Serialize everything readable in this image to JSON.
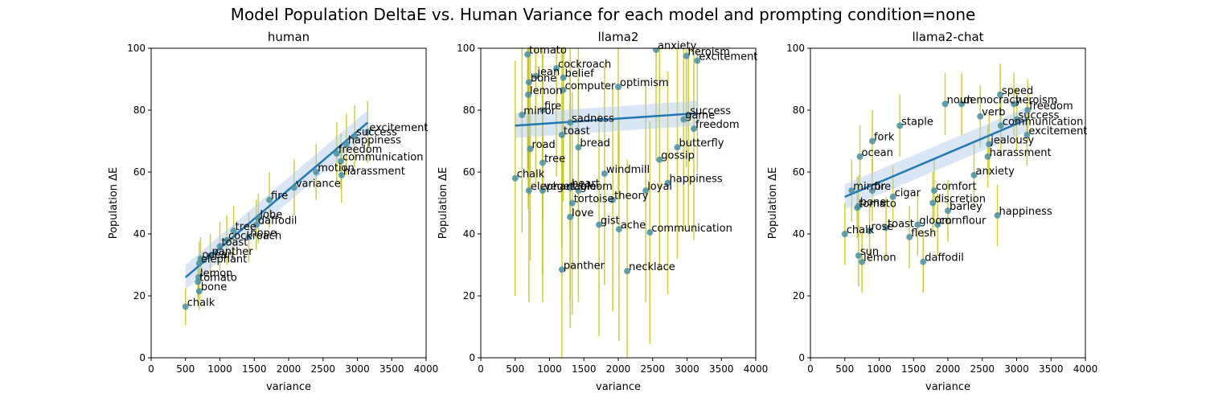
{
  "figure": {
    "title": "Model Population DeltaE vs. Human Variance for each model and prompting condition=none"
  },
  "colors": {
    "point": "#4a8fa0",
    "errorbar": "#bfbf00",
    "regression": "#1f77b4",
    "band": "#aec7e8"
  },
  "chart_data": [
    {
      "type": "scatter",
      "title": "human",
      "xlabel": "variance",
      "ylabel": "Population ΔE",
      "xlim": [
        0,
        4000
      ],
      "ylim": [
        0,
        100
      ],
      "xticks": [
        "0",
        "500",
        "1000",
        "1500",
        "2000",
        "2500",
        "3000",
        "3500",
        "4000"
      ],
      "yticks": [
        "0",
        "20",
        "40",
        "60",
        "80",
        "100"
      ],
      "regression": {
        "x": [
          500,
          3150
        ],
        "y": [
          26,
          76
        ]
      },
      "points": [
        {
          "label": "chalk",
          "x": 500,
          "y": 16.5,
          "err": 6
        },
        {
          "label": "bone",
          "x": 700,
          "y": 21.5,
          "err": 6
        },
        {
          "label": "tomato",
          "x": 680,
          "y": 24.5,
          "err": 6
        },
        {
          "label": "lemon",
          "x": 690,
          "y": 26,
          "err": 6
        },
        {
          "label": "elephant",
          "x": 700,
          "y": 30.5,
          "err": 7
        },
        {
          "label": "panther",
          "x": 860,
          "y": 33,
          "err": 7
        },
        {
          "label": "ocean",
          "x": 720,
          "y": 32,
          "err": 7
        },
        {
          "label": "toast",
          "x": 1000,
          "y": 36,
          "err": 8
        },
        {
          "label": "cockroach",
          "x": 1100,
          "y": 38,
          "err": 8
        },
        {
          "label": "tree",
          "x": 1200,
          "y": 41,
          "err": 8
        },
        {
          "label": "hope",
          "x": 1420,
          "y": 39,
          "err": 8
        },
        {
          "label": "daffodil",
          "x": 1530,
          "y": 43,
          "err": 8
        },
        {
          "label": "lobe",
          "x": 1560,
          "y": 45,
          "err": 8
        },
        {
          "label": "fire",
          "x": 1720,
          "y": 51,
          "err": 9
        },
        {
          "label": "variance",
          "x": 2080,
          "y": 55,
          "err": 9
        },
        {
          "label": "motion",
          "x": 2400,
          "y": 60,
          "err": 9
        },
        {
          "label": "harassment",
          "x": 2770,
          "y": 59,
          "err": 9
        },
        {
          "label": "communication",
          "x": 2760,
          "y": 63.5,
          "err": 9
        },
        {
          "label": "freedom",
          "x": 2700,
          "y": 66,
          "err": 10
        },
        {
          "label": "happiness",
          "x": 2840,
          "y": 69,
          "err": 10
        },
        {
          "label": "success",
          "x": 2960,
          "y": 71.5,
          "err": 10
        },
        {
          "label": "excitement",
          "x": 3150,
          "y": 73,
          "err": 10
        }
      ]
    },
    {
      "type": "scatter",
      "title": "llama2",
      "xlabel": "variance",
      "ylabel": "Population ΔE",
      "xlim": [
        0,
        4000
      ],
      "ylim": [
        0,
        100
      ],
      "xticks": [
        "0",
        "500",
        "1000",
        "1500",
        "2000",
        "2500",
        "3000",
        "3500",
        "4000"
      ],
      "yticks": [
        "0",
        "20",
        "40",
        "60",
        "80",
        "100"
      ],
      "regression": {
        "x": [
          500,
          3150
        ],
        "y": [
          75,
          79
        ]
      },
      "points": [
        {
          "label": "tomato",
          "x": 680,
          "y": 98,
          "err": 38
        },
        {
          "label": "cockroach",
          "x": 1100,
          "y": 93.5,
          "err": 35
        },
        {
          "label": "jean",
          "x": 800,
          "y": 91,
          "err": 36
        },
        {
          "label": "bone",
          "x": 700,
          "y": 89,
          "err": 37
        },
        {
          "label": "lemon",
          "x": 690,
          "y": 85,
          "err": 37
        },
        {
          "label": "mirror",
          "x": 600,
          "y": 78.5,
          "err": 38
        },
        {
          "label": "sadness",
          "x": 1300,
          "y": 76,
          "err": 36
        },
        {
          "label": "road",
          "x": 720,
          "y": 67.5,
          "err": 36
        },
        {
          "label": "tree",
          "x": 900,
          "y": 63,
          "err": 36
        },
        {
          "label": "chalk",
          "x": 500,
          "y": 58,
          "err": 38
        },
        {
          "label": "elephant",
          "x": 700,
          "y": 54,
          "err": 36
        },
        {
          "label": "vegetable",
          "x": 900,
          "y": 54,
          "err": 36
        },
        {
          "label": "tortoise",
          "x": 1330,
          "y": 50,
          "err": 36
        },
        {
          "label": "love",
          "x": 1300,
          "y": 45.5,
          "err": 36
        },
        {
          "label": "gist",
          "x": 1720,
          "y": 43,
          "err": 36
        },
        {
          "label": "ache",
          "x": 2010,
          "y": 41.5,
          "err": 36
        },
        {
          "label": "communication",
          "x": 2460,
          "y": 40.5,
          "err": 36
        },
        {
          "label": "panther",
          "x": 1180,
          "y": 28.5,
          "err": 36
        },
        {
          "label": "necklace",
          "x": 2130,
          "y": 28,
          "err": 36
        },
        {
          "label": "theory",
          "x": 1920,
          "y": 51,
          "err": 36
        },
        {
          "label": "loyal",
          "x": 2400,
          "y": 54,
          "err": 36
        },
        {
          "label": "happiness",
          "x": 2720,
          "y": 56.5,
          "err": 36
        },
        {
          "label": "gossip",
          "x": 2600,
          "y": 64,
          "err": 36
        },
        {
          "label": "butterfly",
          "x": 2860,
          "y": 68,
          "err": 36
        },
        {
          "label": "freedom",
          "x": 3100,
          "y": 74,
          "err": 36
        },
        {
          "label": "game",
          "x": 2950,
          "y": 77,
          "err": 36
        },
        {
          "label": "success",
          "x": 3020,
          "y": 78.5,
          "err": 36
        },
        {
          "label": "excitement",
          "x": 3150,
          "y": 96,
          "err": 36
        },
        {
          "label": "heroism",
          "x": 2990,
          "y": 97.5,
          "err": 36
        },
        {
          "label": "anxiety",
          "x": 2550,
          "y": 99.5,
          "err": 36
        },
        {
          "label": "windmill",
          "x": 1800,
          "y": 59.5,
          "err": 36
        },
        {
          "label": "bread",
          "x": 1420,
          "y": 68,
          "err": 36
        },
        {
          "label": "heart",
          "x": 1300,
          "y": 55,
          "err": 36
        },
        {
          "label": "toast",
          "x": 1180,
          "y": 72,
          "err": 36
        },
        {
          "label": "optimism",
          "x": 2000,
          "y": 87.5,
          "err": 36
        },
        {
          "label": "fire",
          "x": 900,
          "y": 80,
          "err": 36
        },
        {
          "label": "belief",
          "x": 1200,
          "y": 90.5,
          "err": 36
        },
        {
          "label": "computer",
          "x": 1200,
          "y": 86.5,
          "err": 36
        },
        {
          "label": "gloom",
          "x": 1420,
          "y": 54,
          "err": 36
        }
      ]
    },
    {
      "type": "scatter",
      "title": "llama2-chat",
      "xlabel": "variance",
      "ylabel": "Population ΔE",
      "xlim": [
        0,
        4000
      ],
      "ylim": [
        0,
        100
      ],
      "xticks": [
        "0",
        "500",
        "1000",
        "1500",
        "2000",
        "2500",
        "3000",
        "3500",
        "4000"
      ],
      "yticks": [
        "0",
        "20",
        "40",
        "60",
        "80",
        "100"
      ],
      "regression": {
        "x": [
          500,
          3150
        ],
        "y": [
          52,
          77
        ]
      },
      "points": [
        {
          "label": "speed",
          "x": 2760,
          "y": 85,
          "err": 10
        },
        {
          "label": "noun",
          "x": 1960,
          "y": 82,
          "err": 10
        },
        {
          "label": "democracy",
          "x": 2200,
          "y": 82,
          "err": 10
        },
        {
          "label": "heroism",
          "x": 2960,
          "y": 82,
          "err": 10
        },
        {
          "label": "freedom",
          "x": 3160,
          "y": 80,
          "err": 10
        },
        {
          "label": "verb",
          "x": 2470,
          "y": 78,
          "err": 10
        },
        {
          "label": "success",
          "x": 3000,
          "y": 77,
          "err": 10
        },
        {
          "label": "communication",
          "x": 2770,
          "y": 75,
          "err": 10
        },
        {
          "label": "excitement",
          "x": 3150,
          "y": 72,
          "err": 10
        },
        {
          "label": "jealousy",
          "x": 2600,
          "y": 69,
          "err": 10
        },
        {
          "label": "staple",
          "x": 1300,
          "y": 75,
          "err": 10
        },
        {
          "label": "ocean",
          "x": 720,
          "y": 65,
          "err": 10
        },
        {
          "label": "harassment",
          "x": 2580,
          "y": 65,
          "err": 10
        },
        {
          "label": "anxiety",
          "x": 2380,
          "y": 59,
          "err": 10
        },
        {
          "label": "mirror",
          "x": 600,
          "y": 54,
          "err": 10
        },
        {
          "label": "fire",
          "x": 900,
          "y": 54,
          "err": 10
        },
        {
          "label": "bone",
          "x": 700,
          "y": 49,
          "err": 10
        },
        {
          "label": "tomato",
          "x": 680,
          "y": 48.5,
          "err": 10
        },
        {
          "label": "comfort",
          "x": 1800,
          "y": 54,
          "err": 10
        },
        {
          "label": "discretion",
          "x": 1780,
          "y": 50,
          "err": 10
        },
        {
          "label": "barley",
          "x": 2000,
          "y": 47.5,
          "err": 10
        },
        {
          "label": "happiness",
          "x": 2720,
          "y": 46,
          "err": 10
        },
        {
          "label": "cornflour",
          "x": 1850,
          "y": 43,
          "err": 10
        },
        {
          "label": "gloom",
          "x": 1560,
          "y": 43,
          "err": 10
        },
        {
          "label": "toast",
          "x": 1100,
          "y": 42,
          "err": 10
        },
        {
          "label": "rose",
          "x": 860,
          "y": 41,
          "err": 10
        },
        {
          "label": "chalk",
          "x": 500,
          "y": 40,
          "err": 10
        },
        {
          "label": "flesh",
          "x": 1440,
          "y": 39,
          "err": 10
        },
        {
          "label": "sun",
          "x": 700,
          "y": 33,
          "err": 10
        },
        {
          "label": "lemon",
          "x": 750,
          "y": 31,
          "err": 10
        },
        {
          "label": "daffodil",
          "x": 1640,
          "y": 31,
          "err": 10
        },
        {
          "label": "cigar",
          "x": 1200,
          "y": 52,
          "err": 10
        },
        {
          "label": "fork",
          "x": 900,
          "y": 70,
          "err": 10
        }
      ]
    }
  ]
}
